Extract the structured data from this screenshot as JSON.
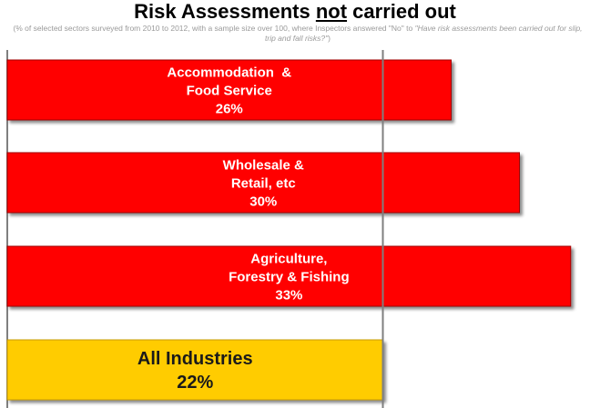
{
  "title": {
    "before": "Risk Assessments ",
    "emphasis": "not",
    "after": " carried out"
  },
  "subtitle": {
    "text": "(% of selected sectors surveyed from 2010 to 2012, with a sample size over 100, where Inspectors answered \"No\" to ",
    "question": "\"Have risk assessments been carried out for slip, trip and fall risks?\"",
    "closing": ")"
  },
  "colors": {
    "sector_bar": "#ff0000",
    "all_bar": "#ffcc00",
    "sector_text": "#ffffff",
    "all_text": "#1a1a1a",
    "axis": "#7f7f7f"
  },
  "chart_data": {
    "type": "bar",
    "orientation": "horizontal",
    "categories": [
      [
        "Accommodation  &",
        "Food Service"
      ],
      [
        "Wholesale &",
        "Retail, etc"
      ],
      [
        "Agriculture,",
        "Forestry & Fishing"
      ],
      [
        "All Industries"
      ]
    ],
    "values": [
      26,
      30,
      33,
      22
    ],
    "value_labels": [
      "26%",
      "30%",
      "33%",
      "22%"
    ],
    "highlight_index": 3,
    "xlim": [
      0,
      33.6
    ],
    "reference_line": 22,
    "grid": false,
    "legend": "none"
  }
}
